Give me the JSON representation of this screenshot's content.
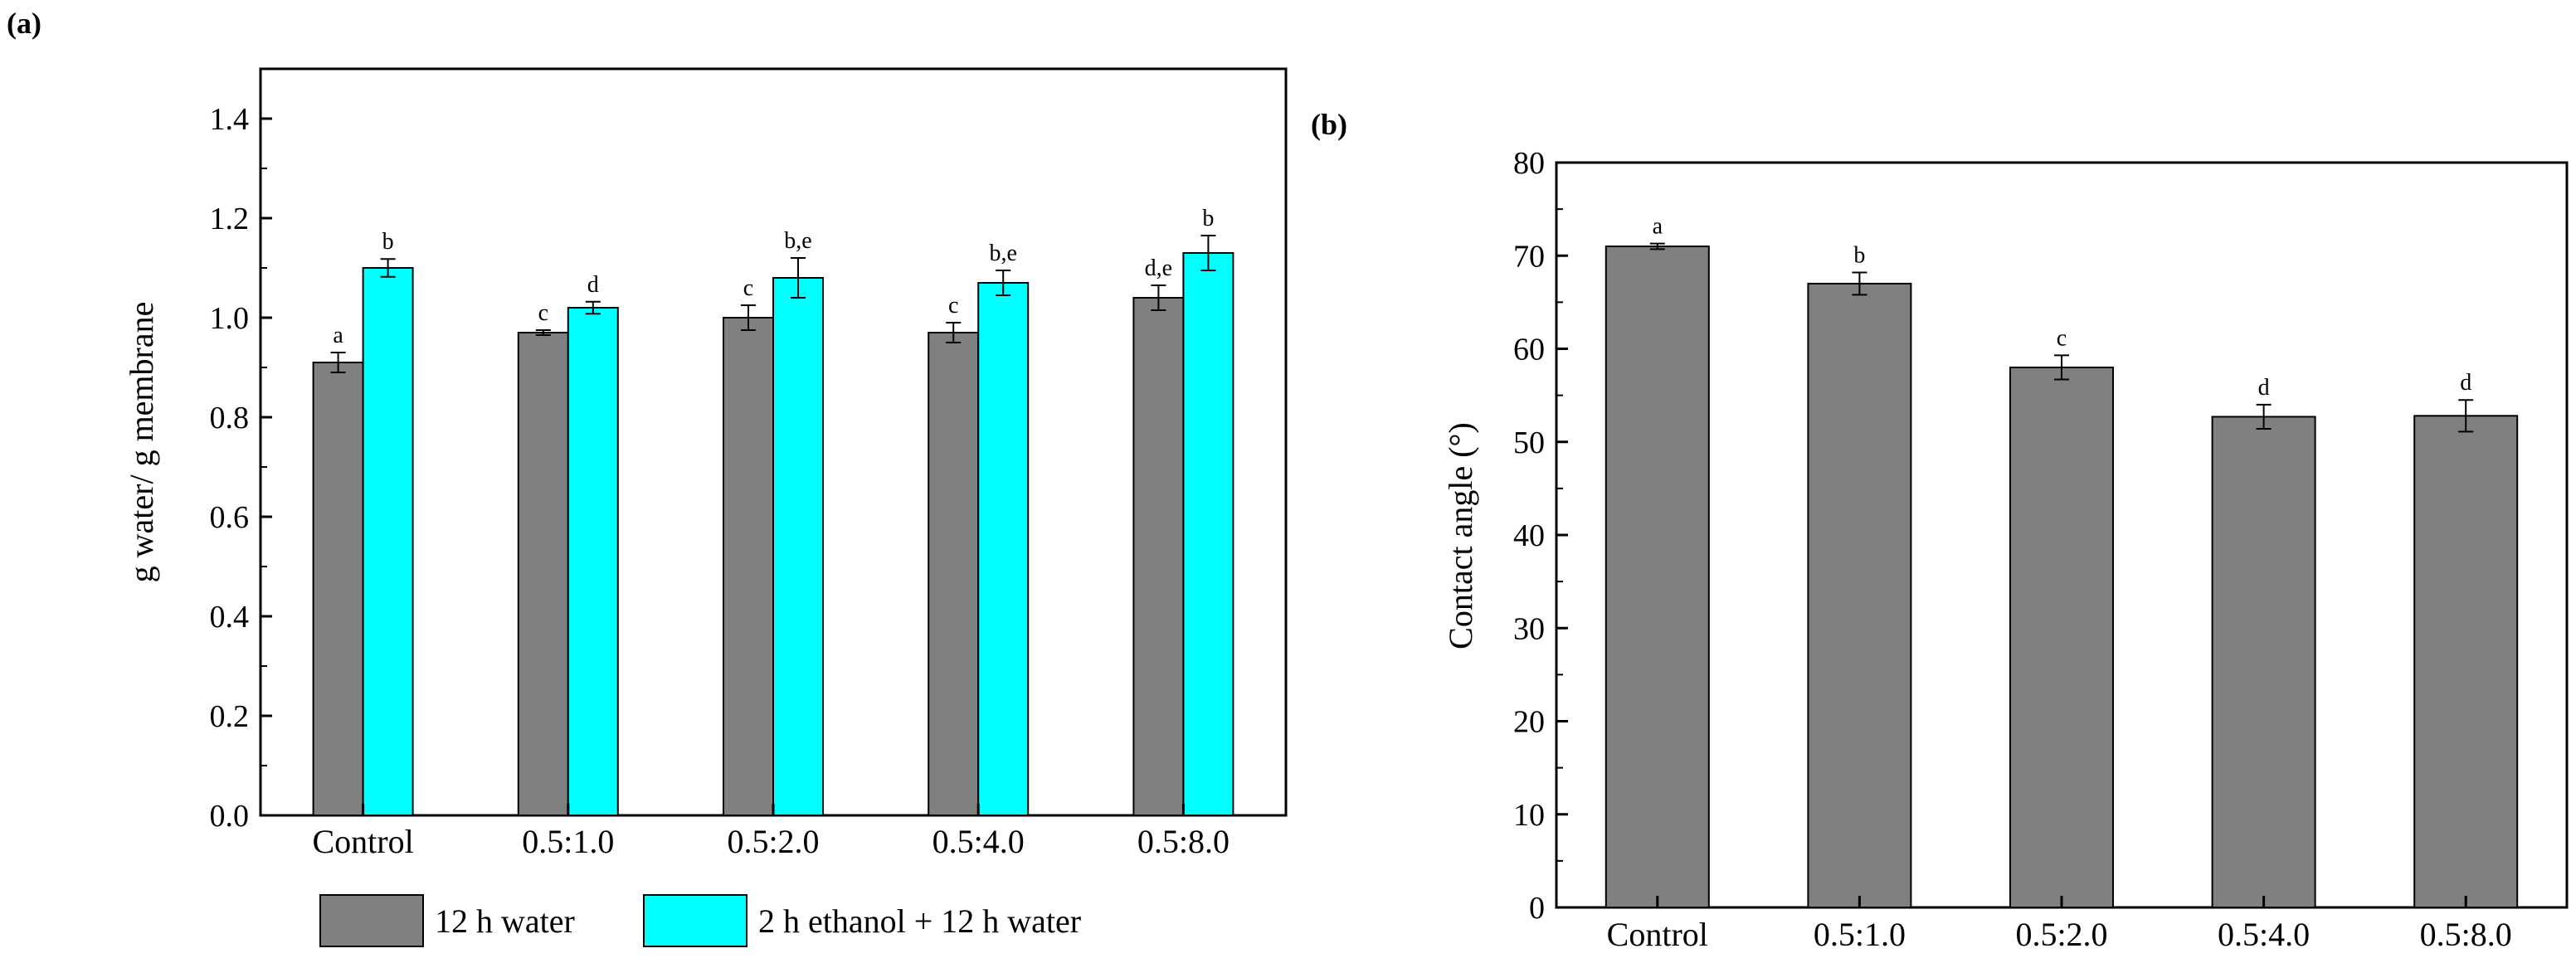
{
  "chart_data": [
    {
      "panel_label": "(a)",
      "type": "bar",
      "title": "",
      "xlabel": "",
      "ylabel": "g water/ g membrane",
      "ylim": [
        0,
        1.5
      ],
      "yticks": [
        "0.0",
        "0.2",
        "0.4",
        "0.6",
        "0.8",
        "1.0",
        "1.2",
        "1.4"
      ],
      "categories": [
        "Control",
        "0.5:1.0",
        "0.5:2.0",
        "0.5:4.0",
        "0.5:8.0"
      ],
      "series": [
        {
          "name": "12 h water",
          "color": "#808080",
          "values": [
            0.91,
            0.97,
            1.0,
            0.97,
            1.04
          ],
          "errors": [
            0.02,
            0.005,
            0.025,
            0.02,
            0.025
          ],
          "labels": [
            "a",
            "c",
            "c",
            "c",
            "d,e"
          ]
        },
        {
          "name": "2 h ethanol + 12 h water",
          "color": "#00FFFF",
          "values": [
            1.1,
            1.02,
            1.08,
            1.07,
            1.13
          ],
          "errors": [
            0.018,
            0.012,
            0.04,
            0.025,
            0.035
          ],
          "labels": [
            "b",
            "d",
            "b,e",
            "b,e",
            "b"
          ]
        }
      ],
      "legend": {
        "placement": "bottom"
      }
    },
    {
      "panel_label": "(b)",
      "type": "bar",
      "title": "",
      "xlabel": "",
      "ylabel": "Contact angle (°)",
      "ylim": [
        0,
        80
      ],
      "yticks": [
        "0",
        "10",
        "20",
        "30",
        "40",
        "50",
        "60",
        "70",
        "80"
      ],
      "categories": [
        "Control",
        "0.5:1.0",
        "0.5:2.0",
        "0.5:4.0",
        "0.5:8.0"
      ],
      "series": [
        {
          "name": "Contact angle",
          "color": "#808080",
          "values": [
            71.0,
            67.0,
            58.0,
            52.7,
            52.8
          ],
          "errors": [
            0.3,
            1.2,
            1.3,
            1.3,
            1.7
          ],
          "labels": [
            "a",
            "b",
            "c",
            "d",
            "d"
          ]
        }
      ]
    }
  ]
}
